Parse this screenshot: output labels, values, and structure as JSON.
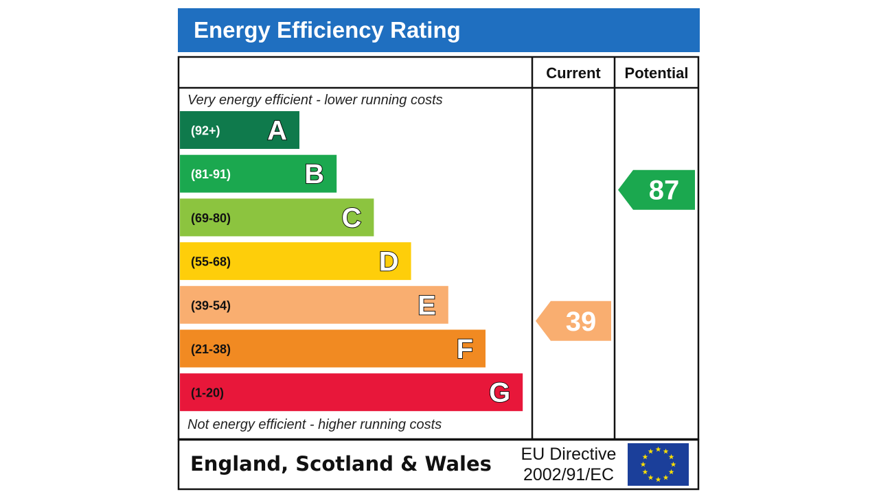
{
  "colors": {
    "header_blue": "#1f6fc0",
    "band_A": "#0f7a4c",
    "band_B": "#1ba84f",
    "band_C": "#8cc43f",
    "band_D": "#fece0a",
    "band_E": "#f9ae70",
    "band_F": "#f18a22",
    "band_G": "#e8173a",
    "eu_blue": "#1b3f9a",
    "eu_star": "#ffe100"
  },
  "chart_data": {
    "type": "bar",
    "title": "Energy Efficiency Rating",
    "columns": [
      "Current",
      "Potential"
    ],
    "top_note": "Very energy efficient - lower running costs",
    "bottom_note": "Not energy efficient - higher running costs",
    "bands": [
      {
        "letter": "A",
        "range": "(92+)",
        "min": 92,
        "max": 100,
        "color": "#0f7a4c",
        "range_color": "#ffffff"
      },
      {
        "letter": "B",
        "range": "(81-91)",
        "min": 81,
        "max": 91,
        "color": "#1ba84f",
        "range_color": "#ffffff"
      },
      {
        "letter": "C",
        "range": "(69-80)",
        "min": 69,
        "max": 80,
        "color": "#8cc43f",
        "range_color": "#111111"
      },
      {
        "letter": "D",
        "range": "(55-68)",
        "min": 55,
        "max": 68,
        "color": "#fece0a",
        "range_color": "#111111"
      },
      {
        "letter": "E",
        "range": "(39-54)",
        "min": 39,
        "max": 54,
        "color": "#f9ae70",
        "range_color": "#111111"
      },
      {
        "letter": "F",
        "range": "(21-38)",
        "min": 21,
        "max": 38,
        "color": "#f18a22",
        "range_color": "#111111"
      },
      {
        "letter": "G",
        "range": "(1-20)",
        "min": 1,
        "max": 20,
        "color": "#e8173a",
        "range_color": "#111111"
      }
    ],
    "current": {
      "value": 39,
      "band": "E",
      "color": "#f9ae70"
    },
    "potential": {
      "value": 87,
      "band": "B",
      "color": "#1ba84f"
    }
  },
  "footer": {
    "region": "England, Scotland & Wales",
    "directive_line1": "EU Directive",
    "directive_line2": "2002/91/EC",
    "flag_icon": "eu-flag-icon"
  }
}
